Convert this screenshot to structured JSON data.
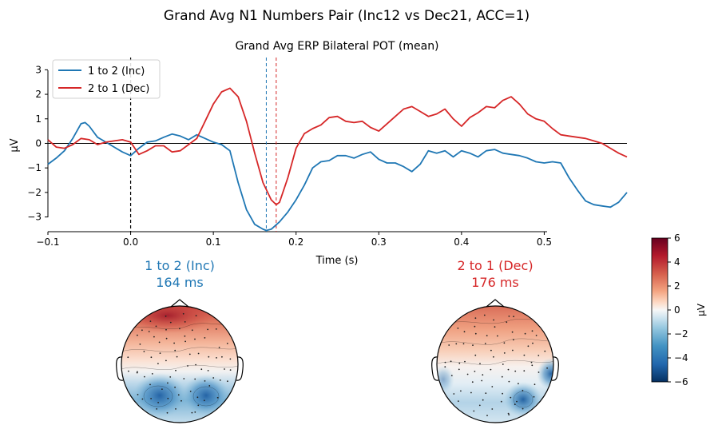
{
  "figure": {
    "suptitle": "Grand Avg N1 Numbers Pair (Inc12 vs Dec21, ACC=1)"
  },
  "chart_data": [
    {
      "type": "line",
      "title": "Grand Avg ERP Bilateral POT (mean)",
      "xlabel": "Time (s)",
      "ylabel": "µV",
      "xlim": [
        -0.1,
        0.6
      ],
      "ylim": [
        -3.6,
        3.5
      ],
      "xticks": [
        -0.1,
        0.0,
        0.1,
        0.2,
        0.3,
        0.4,
        0.5
      ],
      "xtick_labels": [
        "−0.1",
        "0.0",
        "0.1",
        "0.2",
        "0.3",
        "0.4",
        "0.5"
      ],
      "yticks": [
        -3,
        -2,
        -1,
        0,
        1,
        2,
        3
      ],
      "ytick_labels": [
        "−3",
        "−2",
        "−1",
        "0",
        "1",
        "2",
        "3"
      ],
      "legend_position": "top-left",
      "grid": false,
      "onset_line_x": 0.0,
      "series": [
        {
          "name": "1 to 2 (Inc)",
          "color": "#1f77b4",
          "peak_time": 0.164,
          "x": [
            -0.1,
            -0.09,
            -0.08,
            -0.07,
            -0.06,
            -0.055,
            -0.05,
            -0.04,
            -0.03,
            -0.02,
            -0.01,
            0.0,
            0.01,
            0.02,
            0.03,
            0.04,
            0.05,
            0.06,
            0.07,
            0.08,
            0.09,
            0.1,
            0.11,
            0.12,
            0.13,
            0.14,
            0.15,
            0.16,
            0.164,
            0.17,
            0.18,
            0.19,
            0.2,
            0.21,
            0.22,
            0.23,
            0.24,
            0.25,
            0.26,
            0.27,
            0.28,
            0.29,
            0.3,
            0.31,
            0.32,
            0.33,
            0.34,
            0.35,
            0.36,
            0.37,
            0.38,
            0.39,
            0.4,
            0.41,
            0.42,
            0.43,
            0.44,
            0.45,
            0.46,
            0.47,
            0.48,
            0.49,
            0.5,
            0.51,
            0.52,
            0.53,
            0.54,
            0.55,
            0.56,
            0.57,
            0.58,
            0.59,
            0.6
          ],
          "y": [
            -0.85,
            -0.6,
            -0.3,
            0.2,
            0.8,
            0.85,
            0.7,
            0.25,
            0.05,
            -0.15,
            -0.35,
            -0.5,
            -0.2,
            0.05,
            0.1,
            0.25,
            0.38,
            0.3,
            0.15,
            0.35,
            0.2,
            0.05,
            -0.05,
            -0.3,
            -1.6,
            -2.7,
            -3.3,
            -3.5,
            -3.55,
            -3.5,
            -3.2,
            -2.8,
            -2.3,
            -1.7,
            -1.0,
            -0.75,
            -0.7,
            -0.5,
            -0.5,
            -0.6,
            -0.45,
            -0.35,
            -0.65,
            -0.8,
            -0.8,
            -0.95,
            -1.15,
            -0.85,
            -0.3,
            -0.4,
            -0.3,
            -0.55,
            -0.3,
            -0.4,
            -0.55,
            -0.3,
            -0.25,
            -0.4,
            -0.45,
            -0.5,
            -0.6,
            -0.75,
            -0.8,
            -0.75,
            -0.8,
            -1.4,
            -1.9,
            -2.35,
            -2.5,
            -2.55,
            -2.6,
            -2.4,
            -2.0
          ]
        },
        {
          "name": "2 to 1 (Dec)",
          "color": "#d62728",
          "peak_time": 0.176,
          "x": [
            -0.1,
            -0.09,
            -0.08,
            -0.07,
            -0.06,
            -0.05,
            -0.04,
            -0.03,
            -0.02,
            -0.01,
            0.0,
            0.01,
            0.02,
            0.03,
            0.04,
            0.05,
            0.06,
            0.07,
            0.08,
            0.09,
            0.1,
            0.11,
            0.12,
            0.13,
            0.14,
            0.15,
            0.16,
            0.17,
            0.176,
            0.18,
            0.19,
            0.2,
            0.21,
            0.22,
            0.23,
            0.24,
            0.25,
            0.26,
            0.27,
            0.28,
            0.29,
            0.3,
            0.31,
            0.32,
            0.33,
            0.34,
            0.35,
            0.36,
            0.37,
            0.38,
            0.39,
            0.4,
            0.41,
            0.42,
            0.43,
            0.44,
            0.45,
            0.46,
            0.47,
            0.48,
            0.49,
            0.5,
            0.51,
            0.52,
            0.53,
            0.54,
            0.55,
            0.56,
            0.57,
            0.58,
            0.59,
            0.6
          ],
          "y": [
            0.15,
            -0.15,
            -0.2,
            -0.05,
            0.2,
            0.15,
            -0.05,
            0.05,
            0.1,
            0.15,
            0.05,
            -0.45,
            -0.3,
            -0.1,
            -0.1,
            -0.35,
            -0.3,
            -0.05,
            0.2,
            0.9,
            1.6,
            2.1,
            2.25,
            1.9,
            0.9,
            -0.4,
            -1.6,
            -2.3,
            -2.5,
            -2.4,
            -1.4,
            -0.2,
            0.4,
            0.6,
            0.75,
            1.05,
            1.1,
            0.9,
            0.85,
            0.9,
            0.65,
            0.5,
            0.8,
            1.1,
            1.4,
            1.5,
            1.3,
            1.1,
            1.2,
            1.4,
            1.0,
            0.7,
            1.05,
            1.25,
            1.5,
            1.45,
            1.75,
            1.9,
            1.6,
            1.2,
            1.0,
            0.9,
            0.6,
            0.35,
            0.3,
            0.25,
            0.2,
            0.1,
            0.0,
            -0.2,
            -0.4,
            -0.55
          ]
        }
      ]
    },
    {
      "type": "heatmap",
      "subtype": "topomap",
      "colorbar": {
        "label": "µV",
        "range": [
          -6,
          6
        ],
        "ticks": [
          -6,
          -4,
          -2,
          0,
          2,
          4,
          6
        ],
        "tick_labels": [
          "−6",
          "−4",
          "−2",
          "0",
          "2",
          "4",
          "6"
        ],
        "colormap": "RdBu_r"
      },
      "maps": [
        {
          "title": "1 to 2 (Inc)",
          "latency": "164 ms",
          "color": "#1f77b4"
        },
        {
          "title": "2 to 1 (Dec)",
          "latency": "176 ms",
          "color": "#d62728"
        }
      ]
    }
  ]
}
